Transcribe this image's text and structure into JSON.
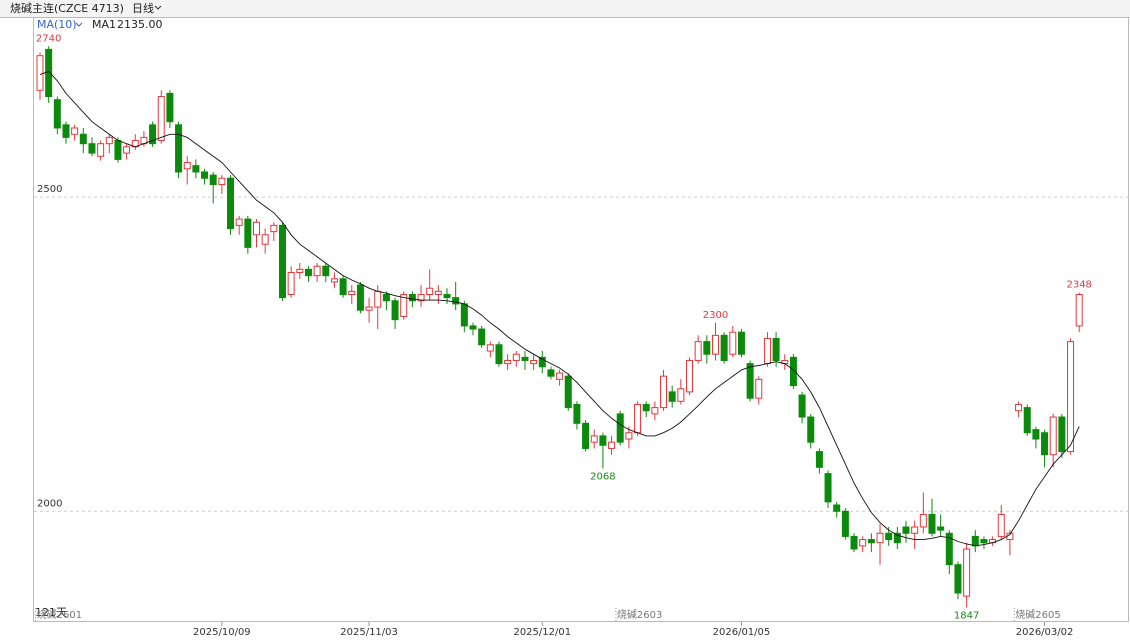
{
  "chart_data": {
    "type": "candlestick",
    "title": "烧碱主连(CZCE 4713)",
    "period": "日线",
    "span_label": "121天",
    "up_color": "#e0393e",
    "down_color": "#0c8a0c",
    "ylim": [
      1827,
      2785
    ],
    "yticks": [
      2000,
      2500
    ],
    "grid": true,
    "categories": [
      null,
      null,
      null,
      null,
      null,
      null,
      null,
      null,
      null,
      null,
      null,
      null,
      null,
      null,
      null,
      null,
      null,
      null,
      null,
      null,
      null,
      "2025/10/09",
      null,
      null,
      null,
      null,
      null,
      null,
      null,
      null,
      null,
      null,
      null,
      null,
      null,
      null,
      null,
      null,
      "2025/11/03",
      null,
      null,
      null,
      null,
      null,
      null,
      null,
      null,
      null,
      null,
      null,
      null,
      null,
      null,
      null,
      null,
      null,
      null,
      null,
      "2025/12/01",
      null,
      null,
      null,
      null,
      null,
      null,
      null,
      null,
      null,
      null,
      null,
      null,
      null,
      null,
      null,
      null,
      null,
      null,
      null,
      null,
      null,
      null,
      "2026/01/05",
      null,
      null,
      null,
      null,
      null,
      null,
      null,
      null,
      null,
      null,
      null,
      null,
      null,
      null,
      null,
      null,
      null,
      null,
      null,
      null,
      null,
      null,
      null,
      null,
      null,
      null,
      null,
      null,
      null,
      null,
      null,
      null,
      null,
      null,
      "2026/03/02",
      null,
      null,
      null,
      null
    ],
    "open": [
      2670,
      2735,
      2655,
      2615,
      2600,
      2600,
      2585,
      2565,
      2585,
      2590,
      2570,
      2580,
      2585,
      2615,
      2590,
      2665,
      2615,
      2545,
      2550,
      2540,
      2535,
      2520,
      2530,
      2455,
      2465,
      2440,
      2425,
      2445,
      2455,
      2345,
      2380,
      2385,
      2375,
      2390,
      2365,
      2370,
      2345,
      2360,
      2320,
      2325,
      2345,
      2335,
      2310,
      2345,
      2335,
      2345,
      2345,
      2345,
      2340,
      2330,
      2295,
      2290,
      2255,
      2265,
      2235,
      2240,
      2245,
      2235,
      2245,
      2225,
      2210,
      2215,
      2170,
      2140,
      2110,
      2120,
      2100,
      2155,
      2115,
      2125,
      2170,
      2155,
      2165,
      2190,
      2175,
      2190,
      2240,
      2270,
      2250,
      2280,
      2250,
      2285,
      2235,
      2180,
      2235,
      2275,
      2235,
      2245,
      2185,
      2150,
      2095,
      2060,
      2010,
      2000,
      1960,
      1945,
      1955,
      1950,
      1965,
      1965,
      1975,
      1965,
      1975,
      1995,
      1975,
      1965,
      1915,
      1865,
      1960,
      1955,
      1950,
      1960,
      1955,
      2160,
      2165,
      2130,
      2125,
      2090,
      2150,
      2095,
      2295
    ],
    "high": [
      2730,
      2740,
      2660,
      2620,
      2615,
      2610,
      2595,
      2590,
      2600,
      2595,
      2585,
      2600,
      2605,
      2620,
      2670,
      2670,
      2620,
      2565,
      2560,
      2545,
      2540,
      2535,
      2535,
      2470,
      2470,
      2465,
      2450,
      2460,
      2460,
      2390,
      2395,
      2390,
      2395,
      2395,
      2380,
      2375,
      2360,
      2365,
      2340,
      2360,
      2350,
      2340,
      2350,
      2350,
      2360,
      2385,
      2360,
      2355,
      2365,
      2335,
      2300,
      2295,
      2270,
      2270,
      2250,
      2255,
      2255,
      2250,
      2255,
      2230,
      2225,
      2220,
      2175,
      2145,
      2130,
      2125,
      2120,
      2160,
      2135,
      2175,
      2175,
      2175,
      2225,
      2200,
      2210,
      2245,
      2280,
      2280,
      2300,
      2285,
      2295,
      2290,
      2240,
      2215,
      2285,
      2285,
      2250,
      2250,
      2190,
      2155,
      2100,
      2065,
      2015,
      2005,
      1965,
      1960,
      1965,
      1980,
      1975,
      1975,
      1985,
      1985,
      2030,
      2020,
      1995,
      1970,
      1920,
      1950,
      1970,
      1960,
      1960,
      2010,
      1970,
      2175,
      2170,
      2135,
      2130,
      2155,
      2155,
      2275,
      2348
    ],
    "low": [
      2655,
      2650,
      2600,
      2585,
      2590,
      2570,
      2565,
      2558,
      2570,
      2555,
      2560,
      2575,
      2580,
      2580,
      2585,
      2610,
      2530,
      2520,
      2530,
      2520,
      2490,
      2505,
      2440,
      2440,
      2410,
      2420,
      2410,
      2430,
      2335,
      2340,
      2370,
      2365,
      2365,
      2365,
      2355,
      2340,
      2330,
      2315,
      2300,
      2290,
      2320,
      2290,
      2305,
      2325,
      2325,
      2335,
      2330,
      2330,
      2320,
      2285,
      2280,
      2260,
      2245,
      2230,
      2225,
      2230,
      2225,
      2225,
      2220,
      2210,
      2200,
      2160,
      2130,
      2095,
      2100,
      2068,
      2090,
      2105,
      2100,
      2120,
      2150,
      2145,
      2160,
      2165,
      2170,
      2185,
      2235,
      2235,
      2240,
      2235,
      2245,
      2245,
      2175,
      2170,
      2230,
      2230,
      2225,
      2195,
      2140,
      2100,
      2060,
      2005,
      1990,
      1955,
      1935,
      1935,
      1935,
      1915,
      1945,
      1940,
      1950,
      1940,
      1965,
      1960,
      1960,
      1900,
      1860,
      1847,
      1935,
      1940,
      1945,
      1955,
      1930,
      2150,
      2120,
      2100,
      2070,
      2070,
      2085,
      2090,
      2285
    ],
    "close": [
      2725,
      2660,
      2610,
      2595,
      2610,
      2585,
      2570,
      2585,
      2595,
      2560,
      2580,
      2590,
      2595,
      2585,
      2660,
      2620,
      2540,
      2555,
      2540,
      2530,
      2520,
      2530,
      2450,
      2465,
      2420,
      2460,
      2440,
      2455,
      2340,
      2380,
      2385,
      2375,
      2390,
      2375,
      2370,
      2345,
      2350,
      2320,
      2325,
      2350,
      2335,
      2305,
      2345,
      2335,
      2345,
      2355,
      2350,
      2340,
      2330,
      2295,
      2290,
      2265,
      2265,
      2235,
      2240,
      2250,
      2240,
      2240,
      2230,
      2215,
      2220,
      2165,
      2140,
      2100,
      2120,
      2105,
      2110,
      2110,
      2125,
      2170,
      2160,
      2165,
      2215,
      2175,
      2195,
      2240,
      2270,
      2250,
      2280,
      2240,
      2285,
      2250,
      2180,
      2210,
      2275,
      2240,
      2240,
      2200,
      2150,
      2110,
      2070,
      2015,
      2000,
      1960,
      1940,
      1955,
      1950,
      1965,
      1955,
      1950,
      1965,
      1975,
      1995,
      1965,
      1970,
      1915,
      1870,
      1940,
      1945,
      1950,
      1955,
      1995,
      1965,
      2170,
      2125,
      2115,
      2090,
      2150,
      2095,
      2270,
      2345
    ],
    "ma": {
      "indicator": "MA(10)",
      "name": "MA1",
      "last_label": "2135.00",
      "color": "#111111",
      "values": [
        2695,
        2700,
        2685,
        2665,
        2650,
        2635,
        2620,
        2610,
        2600,
        2590,
        2585,
        2580,
        2585,
        2590,
        2595,
        2600,
        2600,
        2595,
        2585,
        2575,
        2565,
        2555,
        2540,
        2525,
        2510,
        2495,
        2485,
        2475,
        2460,
        2440,
        2425,
        2415,
        2405,
        2395,
        2385,
        2375,
        2368,
        2362,
        2355,
        2350,
        2347,
        2343,
        2340,
        2338,
        2336,
        2336,
        2336,
        2335,
        2333,
        2330,
        2322,
        2312,
        2300,
        2290,
        2278,
        2268,
        2258,
        2250,
        2242,
        2235,
        2228,
        2218,
        2205,
        2190,
        2175,
        2160,
        2148,
        2138,
        2130,
        2125,
        2120,
        2120,
        2125,
        2132,
        2142,
        2155,
        2168,
        2182,
        2195,
        2205,
        2215,
        2225,
        2230,
        2232,
        2235,
        2238,
        2235,
        2225,
        2210,
        2190,
        2165,
        2135,
        2105,
        2075,
        2045,
        2020,
        1998,
        1982,
        1970,
        1962,
        1958,
        1955,
        1955,
        1957,
        1960,
        1958,
        1952,
        1948,
        1945,
        1947,
        1950,
        1955,
        1963,
        1985,
        2010,
        2035,
        2055,
        2075,
        2090,
        2105,
        2135
      ]
    },
    "extreme_labels": [
      {
        "index": 1,
        "value": 2740,
        "color": "#e0393e"
      },
      {
        "index": 78,
        "value": 2300,
        "color": "#e0393e"
      },
      {
        "index": 65,
        "value": 2068,
        "color": "#1a8a1a"
      },
      {
        "index": 107,
        "value": 1847,
        "color": "#1a8a1a"
      },
      {
        "index": 120,
        "value": 2348,
        "color": "#e0393e"
      }
    ],
    "contracts": [
      {
        "label": "烧碱2601",
        "index": 0
      },
      {
        "label": "烧碱2603",
        "index": 67
      },
      {
        "label": "烧碱2605",
        "index": 113
      }
    ]
  }
}
